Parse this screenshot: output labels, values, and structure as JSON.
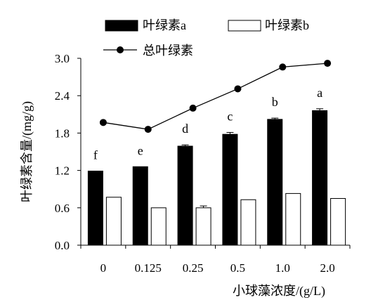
{
  "chart_data": {
    "type": "bar",
    "title": "",
    "xlabel": "小球藻浓度/(g/L)",
    "ylabel": "叶绿素含量/(mg/g)",
    "ylim": [
      0,
      3.0
    ],
    "yticks": [
      "0.0",
      "0.6",
      "1.2",
      "1.8",
      "2.4",
      "3.0"
    ],
    "categories": [
      "0",
      "0.125",
      "0.25",
      "0.5",
      "1.0",
      "2.0"
    ],
    "series": [
      {
        "name": "叶绿素a",
        "kind": "bar",
        "fill": "#000000",
        "values": [
          1.19,
          1.26,
          1.59,
          1.78,
          2.02,
          2.16
        ],
        "errors": [
          0.0,
          0.0,
          0.02,
          0.03,
          0.02,
          0.03
        ]
      },
      {
        "name": "叶绿素b",
        "kind": "bar",
        "fill": "#ffffff",
        "values": [
          0.77,
          0.6,
          0.6,
          0.73,
          0.83,
          0.75
        ],
        "errors": [
          0.0,
          0.0,
          0.03,
          0.0,
          0.0,
          0.0
        ]
      },
      {
        "name": "总叶绿素",
        "kind": "line",
        "color": "#000000",
        "values": [
          1.97,
          1.86,
          2.2,
          2.51,
          2.86,
          2.92
        ]
      }
    ],
    "annotations": [
      "f",
      "e",
      "d",
      "c",
      "b",
      "a"
    ],
    "legend": {
      "placement": "top",
      "entries": [
        "叶绿素a",
        "叶绿素b",
        "总叶绿素"
      ]
    },
    "grid": false
  }
}
